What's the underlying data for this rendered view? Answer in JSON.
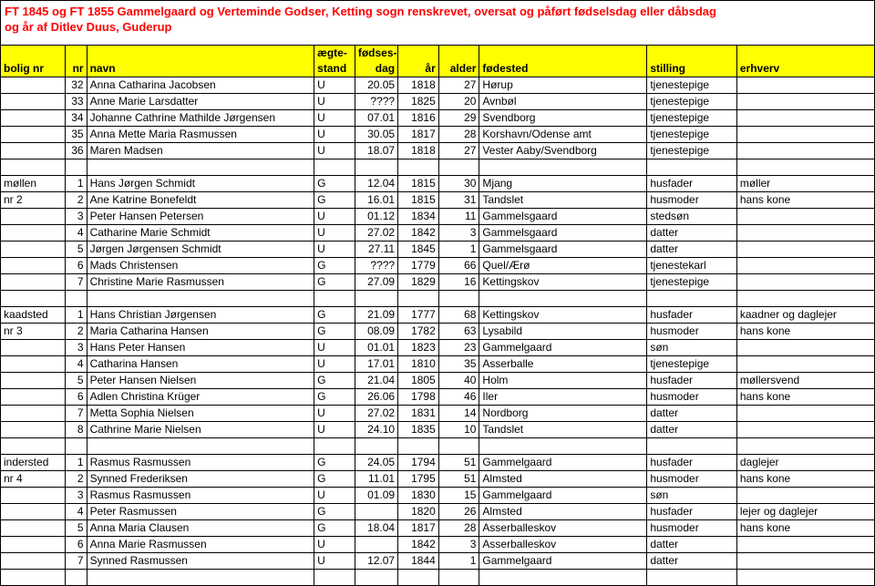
{
  "title_lines": [
    "FT 1845 og FT 1855 Gammelgaard og Verteminde Godser, Ketting sogn renskrevet, oversat og påført fødselsdag eller dåbsdag",
    "og år af Ditlev Duus, Guderup"
  ],
  "header_row1": [
    "",
    "",
    "",
    "ægte-",
    "fødses-",
    "",
    "",
    "",
    "",
    ""
  ],
  "header_row2": [
    "bolig nr",
    "nr",
    "navn",
    "stand",
    "dag",
    "år",
    "alder",
    "fødested",
    "stilling",
    "erhverv"
  ],
  "groups": [
    {
      "lead": [
        "",
        ""
      ],
      "rows": [
        [
          "",
          "32",
          "Anna Catharina Jacobsen",
          "U",
          "20.05",
          "1818",
          "27",
          "Hørup",
          "tjenestepige",
          ""
        ],
        [
          "",
          "33",
          "Anne Marie Larsdatter",
          "U",
          "????",
          "1825",
          "20",
          "Avnbøl",
          "tjenestepige",
          ""
        ],
        [
          "",
          "34",
          "Johanne Cathrine Mathilde Jørgensen",
          "U",
          "07.01",
          "1816",
          "29",
          "Svendborg",
          "tjenestepige",
          ""
        ],
        [
          "",
          "35",
          "Anna Mette Maria Rasmussen",
          "U",
          "30.05",
          "1817",
          "28",
          "Korshavn/Odense amt",
          "tjenestepige",
          ""
        ],
        [
          "",
          "36",
          "Maren Madsen",
          "U",
          "18.07",
          "1818",
          "27",
          "Vester Aaby/Svendborg",
          "tjenestepige",
          ""
        ]
      ]
    },
    {
      "lead": [
        "møllen",
        "nr 2"
      ],
      "rows": [
        [
          "møllen",
          "1",
          "Hans Jørgen Schmidt",
          "G",
          "12.04",
          "1815",
          "30",
          "Mjang",
          "husfader",
          "møller"
        ],
        [
          "nr 2",
          "2",
          "Ane Katrine Bonefeldt",
          "G",
          "16.01",
          "1815",
          "31",
          "Tandslet",
          "husmoder",
          "hans kone"
        ],
        [
          "",
          "3",
          "Peter Hansen Petersen",
          "U",
          "01.12",
          "1834",
          "11",
          "Gammelsgaard",
          "stedsøn",
          ""
        ],
        [
          "",
          "4",
          "Catharine Marie Schmidt",
          "U",
          "27.02",
          "1842",
          "3",
          "Gammelsgaard",
          "datter",
          ""
        ],
        [
          "",
          "5",
          "Jørgen Jørgensen Schmidt",
          "U",
          "27.11",
          "1845",
          "1",
          "Gammelsgaard",
          "datter",
          ""
        ],
        [
          "",
          "6",
          "Mads Christensen",
          "G",
          "????",
          "1779",
          "66",
          "Quel/Ærø",
          "tjenestekarl",
          ""
        ],
        [
          "",
          "7",
          "Christine Marie Rasmussen",
          "G",
          "27.09",
          "1829",
          "16",
          "Kettingskov",
          "tjenestepige",
          ""
        ]
      ]
    },
    {
      "lead": [
        "kaadsted",
        "nr 3"
      ],
      "rows": [
        [
          "kaadsted",
          "1",
          "Hans Christian Jørgensen",
          "G",
          "21.09",
          "1777",
          "68",
          "Kettingskov",
          "husfader",
          "kaadner og daglejer"
        ],
        [
          "nr 3",
          "2",
          "Maria Catharina Hansen",
          "G",
          "08.09",
          "1782",
          "63",
          "Lysabild",
          "husmoder",
          "hans kone"
        ],
        [
          "",
          "3",
          "Hans Peter Hansen",
          "U",
          "01.01",
          "1823",
          "23",
          "Gammelgaard",
          "søn",
          ""
        ],
        [
          "",
          "4",
          "Catharina Hansen",
          "U",
          "17.01",
          "1810",
          "35",
          "Asserballe",
          "tjenestepige",
          ""
        ],
        [
          "",
          "5",
          "Peter Hansen Nielsen",
          "G",
          "21.04",
          "1805",
          "40",
          "Holm",
          "husfader",
          "møllersvend"
        ],
        [
          "",
          "6",
          "Adlen Christina Krüger",
          "G",
          "26.06",
          "1798",
          "46",
          "Iler",
          "husmoder",
          "hans kone"
        ],
        [
          "",
          "7",
          "Metta Sophia Nielsen",
          "U",
          "27.02",
          "1831",
          "14",
          "Nordborg",
          "datter",
          ""
        ],
        [
          "",
          "8",
          "Cathrine Marie Nielsen",
          "U",
          "24.10",
          "1835",
          "10",
          "Tandslet",
          "datter",
          ""
        ]
      ]
    },
    {
      "lead": [
        "indersted",
        "nr 4"
      ],
      "rows": [
        [
          "indersted",
          "1",
          "Rasmus Rasmussen",
          "G",
          "24.05",
          "1794",
          "51",
          "Gammelgaard",
          "husfader",
          "daglejer"
        ],
        [
          "nr 4",
          "2",
          "Synned Frederiksen",
          "G",
          "11.01",
          "1795",
          "51",
          "Almsted",
          "husmoder",
          "hans kone"
        ],
        [
          "",
          "3",
          "Rasmus Rasmussen",
          "U",
          "01.09",
          "1830",
          "15",
          "Gammelgaard",
          "søn",
          ""
        ],
        [
          "",
          "4",
          "Peter Rasmussen",
          "G",
          "",
          "1820",
          "26",
          "Almsted",
          "husfader",
          "lejer og daglejer"
        ],
        [
          "",
          "5",
          "Anna Maria Clausen",
          "G",
          "18.04",
          "1817",
          "28",
          "Asserballeskov",
          "husmoder",
          "hans kone"
        ],
        [
          "",
          "6",
          "Anna Marie Rasmussen",
          "U",
          "",
          "1842",
          "3",
          "Asserballeskov",
          "datter",
          ""
        ],
        [
          "",
          "7",
          "Synned Rasmussen",
          "U",
          "12.07",
          "1844",
          "1",
          "Gammelgaard",
          "datter",
          ""
        ]
      ]
    }
  ]
}
